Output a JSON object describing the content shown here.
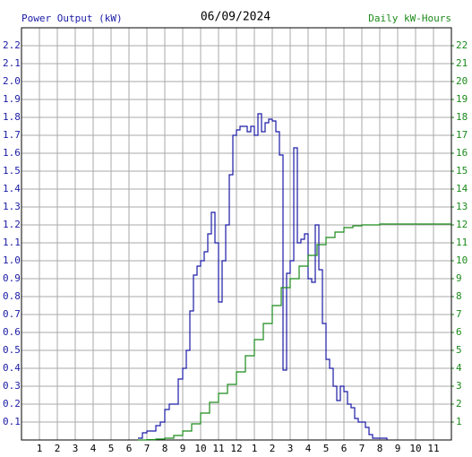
{
  "chart_data": {
    "type": "line",
    "title": "06/09/2024",
    "y_label": "Power Output (kW)",
    "y2_label": "Daily kW-Hours",
    "step": true,
    "grid": true,
    "xlim": [
      0,
      24
    ],
    "xticks": [
      1,
      2,
      3,
      4,
      5,
      6,
      7,
      8,
      9,
      10,
      11,
      12,
      {
        "value": 13,
        "label": "1"
      },
      {
        "value": 14,
        "label": "2"
      },
      {
        "value": 15,
        "label": "3"
      },
      {
        "value": 16,
        "label": "4"
      },
      {
        "value": 17,
        "label": "5"
      },
      {
        "value": 18,
        "label": "6"
      },
      {
        "value": 19,
        "label": "7"
      },
      {
        "value": 20,
        "label": "8"
      },
      {
        "value": 21,
        "label": "9"
      },
      {
        "value": 22,
        "label": "10"
      },
      {
        "value": 23,
        "label": "11"
      }
    ],
    "ylim": [
      0,
      2.3
    ],
    "yticks": [
      0.1,
      0.2,
      0.3,
      0.4,
      0.5,
      0.6,
      0.7,
      0.8,
      0.9,
      {
        "value": 1,
        "label": "1.0"
      },
      1.1,
      1.2,
      1.3,
      1.4,
      1.5,
      1.6,
      1.7,
      1.8,
      1.9,
      {
        "value": 2,
        "label": "2.0"
      },
      2.1,
      2.2
    ],
    "y2lim": [
      0,
      23
    ],
    "y2ticks": [
      1,
      2,
      3,
      4,
      5,
      6,
      7,
      8,
      9,
      10,
      11,
      12,
      13,
      14,
      15,
      16,
      17,
      18,
      19,
      20,
      21,
      22
    ],
    "series": [
      {
        "name": "Power Output (kW)",
        "color": "#1a1aa6",
        "x": [
          6.5,
          6.75,
          7.0,
          7.5,
          7.75,
          8.0,
          8.25,
          8.75,
          9.0,
          9.2,
          9.4,
          9.6,
          9.8,
          10.0,
          10.2,
          10.4,
          10.6,
          10.8,
          11.0,
          11.2,
          11.4,
          11.6,
          11.8,
          12.0,
          12.2,
          12.6,
          12.8,
          13.0,
          13.2,
          13.4,
          13.6,
          13.8,
          14.0,
          14.2,
          14.4,
          14.6,
          14.8,
          15.0,
          15.2,
          15.4,
          15.6,
          15.8,
          16.0,
          16.2,
          16.4,
          16.6,
          16.8,
          17.0,
          17.2,
          17.4,
          17.6,
          17.8,
          18.0,
          18.2,
          18.4,
          18.6,
          18.8,
          19.2,
          19.4,
          19.6,
          20.4
        ],
        "values": [
          0.01,
          0.04,
          0.05,
          0.08,
          0.1,
          0.17,
          0.2,
          0.34,
          0.4,
          0.5,
          0.72,
          0.92,
          0.97,
          1.0,
          1.05,
          1.15,
          1.27,
          1.1,
          0.77,
          1.0,
          1.2,
          1.48,
          1.7,
          1.73,
          1.75,
          1.72,
          1.75,
          1.7,
          1.82,
          1.72,
          1.77,
          1.79,
          1.78,
          1.72,
          1.59,
          0.39,
          0.93,
          1.0,
          1.63,
          1.1,
          1.12,
          1.15,
          0.9,
          0.88,
          1.2,
          0.95,
          0.65,
          0.45,
          0.4,
          0.3,
          0.22,
          0.3,
          0.27,
          0.2,
          0.18,
          0.12,
          0.1,
          0.07,
          0.03,
          0.01,
          0
        ]
      },
      {
        "name": "Daily kW-Hours",
        "color": "#1a8a1a",
        "axis": "y2",
        "x": [
          6.5,
          7.0,
          7.5,
          8.0,
          8.5,
          9.0,
          9.5,
          10.0,
          10.5,
          11.0,
          11.5,
          12.0,
          12.5,
          13.0,
          13.5,
          14.0,
          14.5,
          15.0,
          15.5,
          16.0,
          16.5,
          17.0,
          17.5,
          18.0,
          18.5,
          19.0,
          20.0,
          24.0
        ],
        "values": [
          0,
          0.02,
          0.05,
          0.1,
          0.25,
          0.5,
          0.9,
          1.5,
          2.1,
          2.6,
          3.1,
          3.8,
          4.7,
          5.6,
          6.5,
          7.5,
          8.5,
          9.0,
          9.7,
          10.3,
          10.9,
          11.3,
          11.6,
          11.85,
          11.95,
          12.0,
          12.05,
          12.05
        ]
      }
    ]
  }
}
